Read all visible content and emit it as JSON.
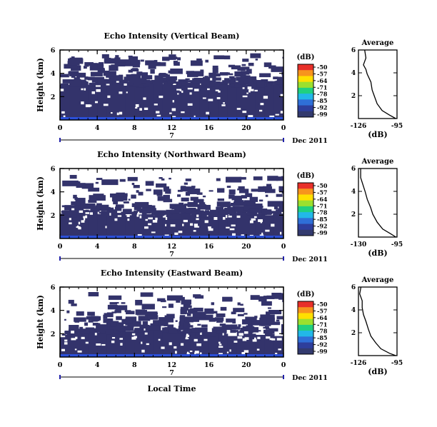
{
  "figure": {
    "x_axis_label": "Local Time",
    "date_label": "Dec 2011",
    "colorbar_unit": "(dB)",
    "colorbar_ticks": [
      "-50",
      "-57",
      "-64",
      "-71",
      "-78",
      "-85",
      "-92",
      "-99"
    ],
    "colorbar_colors": [
      "#e8302a",
      "#f7941d",
      "#ffe000",
      "#9be02e",
      "#20d080",
      "#22b8e8",
      "#2f6fd8",
      "#2e3e9c",
      "#333a6e"
    ],
    "avg_title": "Average",
    "avg_xlabel": "(dB)",
    "day_marker": "7",
    "echo_color": "#33336b",
    "surface_color": "#2b4fd8"
  },
  "chart_data": [
    {
      "type": "heatmap",
      "title": "Echo Intensity (Vertical Beam)",
      "ylabel": "Height (km)",
      "x_ticks": [
        "0",
        "4",
        "8",
        "12",
        "16",
        "20",
        "0"
      ],
      "y_ticks": [
        "6",
        "4",
        "2"
      ],
      "xlim": [
        0,
        24
      ],
      "ylim": [
        0,
        6
      ],
      "echo_top_km": [
        3.0,
        3.1,
        3.3,
        3.0,
        3.2,
        3.5,
        3.2,
        3.0,
        2.9,
        3.0,
        3.2,
        3.1,
        3.0,
        3.1,
        3.3,
        3.0,
        3.0,
        3.1,
        3.0,
        3.2,
        3.0,
        3.0,
        3.0,
        3.0
      ],
      "average_profile": {
        "xlim": [
          -126,
          -95
        ],
        "x_ticks": [
          "-126",
          "-95"
        ],
        "y_ticks": [
          "6",
          "4",
          "2"
        ],
        "curve": [
          [
            -121,
            6.0
          ],
          [
            -120,
            5.3
          ],
          [
            -122,
            4.7
          ],
          [
            -120,
            4.3
          ],
          [
            -119,
            3.9
          ],
          [
            -116,
            3.2
          ],
          [
            -115,
            2.5
          ],
          [
            -113,
            1.9
          ],
          [
            -111,
            1.3
          ],
          [
            -107,
            0.7
          ],
          [
            -101,
            0.3
          ],
          [
            -96,
            0.0
          ]
        ]
      }
    },
    {
      "type": "heatmap",
      "title": "Echo Intensity (Northward Beam)",
      "ylabel": "Height (km)",
      "x_ticks": [
        "0",
        "4",
        "8",
        "12",
        "16",
        "20",
        "0"
      ],
      "y_ticks": [
        "6",
        "4",
        "2"
      ],
      "xlim": [
        0,
        24
      ],
      "ylim": [
        0,
        6
      ],
      "echo_top_km": [
        2.0,
        2.6,
        2.2,
        2.4,
        2.1,
        2.5,
        2.2,
        2.0,
        2.3,
        2.1,
        2.0,
        1.8,
        2.2,
        2.3,
        2.0,
        1.9,
        2.3,
        2.1,
        2.0,
        2.4,
        2.2,
        2.1,
        2.0,
        2.3
      ],
      "average_profile": {
        "xlim": [
          -130,
          -95
        ],
        "x_ticks": [
          "-130",
          "-95"
        ],
        "y_ticks": [
          "6",
          "4",
          "2"
        ],
        "curve": [
          [
            -128,
            6.0
          ],
          [
            -128,
            5.2
          ],
          [
            -126,
            4.6
          ],
          [
            -124,
            4.0
          ],
          [
            -122,
            3.3
          ],
          [
            -119,
            2.6
          ],
          [
            -117,
            2.0
          ],
          [
            -113,
            1.3
          ],
          [
            -108,
            0.7
          ],
          [
            -101,
            0.3
          ],
          [
            -96,
            0.0
          ]
        ]
      }
    },
    {
      "type": "heatmap",
      "title": "Echo Intensity (Eastward Beam)",
      "ylabel": "Height (km)",
      "x_ticks": [
        "0",
        "4",
        "8",
        "12",
        "16",
        "20",
        "0"
      ],
      "y_ticks": [
        "6",
        "4",
        "2"
      ],
      "xlim": [
        0,
        24
      ],
      "ylim": [
        0,
        6
      ],
      "echo_top_km": [
        1.7,
        2.3,
        2.0,
        2.2,
        2.1,
        2.4,
        2.3,
        2.2,
        2.5,
        2.4,
        2.3,
        2.2,
        2.1,
        2.0,
        2.2,
        1.9,
        2.1,
        2.0,
        1.8,
        2.2,
        2.0,
        1.9,
        2.0,
        1.8
      ],
      "average_profile": {
        "xlim": [
          -126,
          -95
        ],
        "x_ticks": [
          "-126",
          "-95"
        ],
        "y_ticks": [
          "6",
          "4",
          "2"
        ],
        "curve": [
          [
            -124,
            6.0
          ],
          [
            -125,
            5.4
          ],
          [
            -123,
            4.8
          ],
          [
            -123,
            4.2
          ],
          [
            -122,
            3.6
          ],
          [
            -120,
            3.0
          ],
          [
            -118,
            2.3
          ],
          [
            -116,
            1.7
          ],
          [
            -112,
            1.1
          ],
          [
            -108,
            0.6
          ],
          [
            -101,
            0.2
          ],
          [
            -96,
            0.0
          ]
        ]
      }
    }
  ]
}
